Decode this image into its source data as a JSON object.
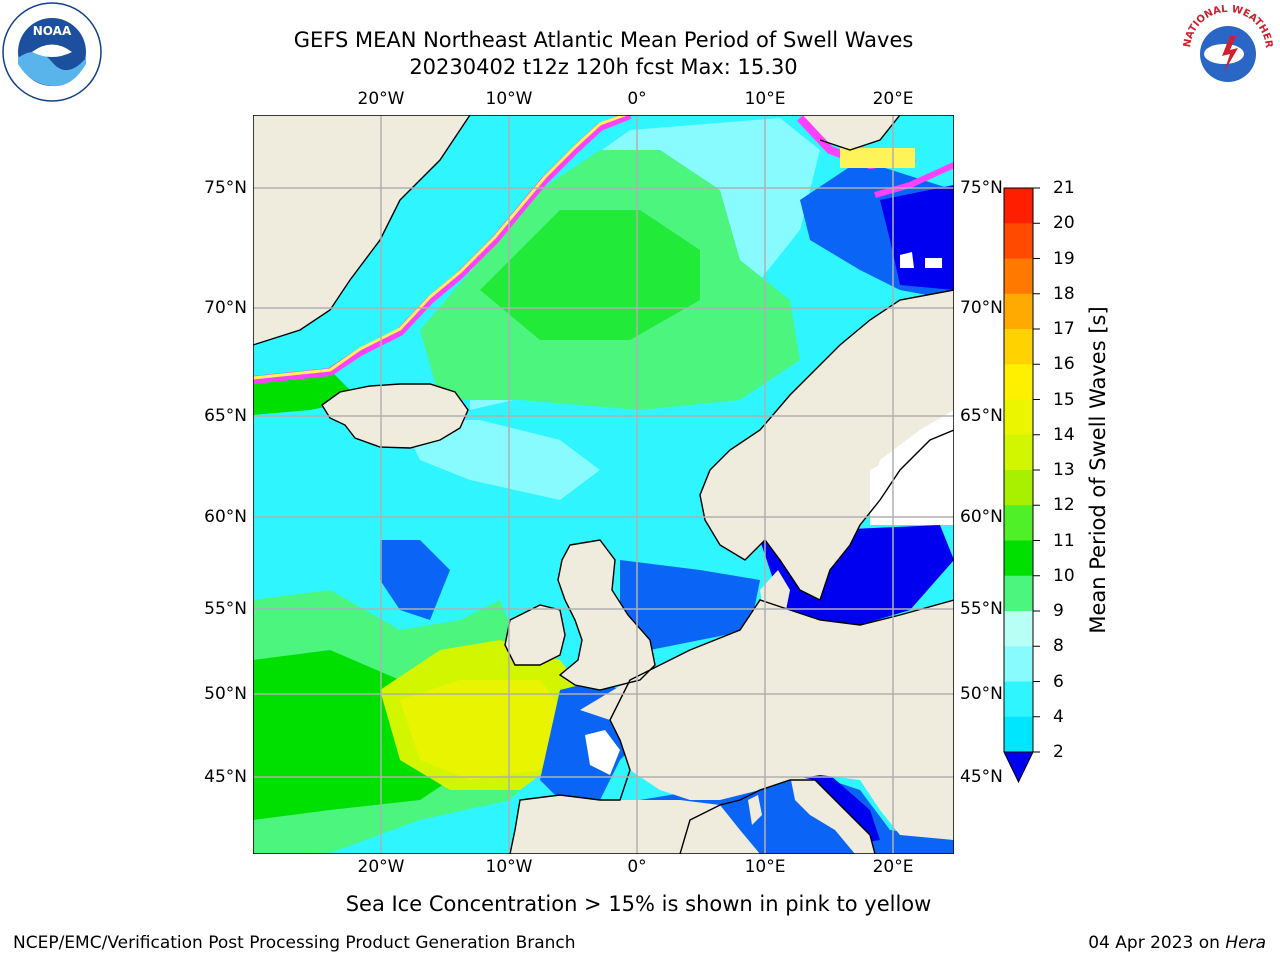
{
  "title": {
    "line1": "GEFS MEAN Northeast Atlantic Mean Period of Swell Waves",
    "line2": "20230402 t12z 120h fcst   Max: 15.30"
  },
  "lon_labels": [
    "20°W",
    "10°W",
    "0°",
    "10°E",
    "20°E"
  ],
  "lat_labels": [
    "75°N",
    "70°N",
    "65°N",
    "60°N",
    "55°N",
    "50°N",
    "45°N"
  ],
  "colorbar": {
    "label": "Mean Period of Swell Waves [s]",
    "ticks": [
      "2",
      "4",
      "6",
      "8",
      "9",
      "10",
      "11",
      "12",
      "13",
      "14",
      "15",
      "16",
      "17",
      "18",
      "19",
      "20",
      "21"
    ],
    "colors": [
      "#0a64f5",
      "#00e6ff",
      "#2ef5ff",
      "#87fbff",
      "#b8fff5",
      "#4cf57e",
      "#00e000",
      "#4ff027",
      "#a8f000",
      "#d2f500",
      "#ebf500",
      "#fff000",
      "#ffd200",
      "#ffaa00",
      "#ff7800",
      "#ff4a00",
      "#ff1e00"
    ]
  },
  "note": "Sea Ice Concentration > 15% is shown in pink to yellow",
  "credit": "NCEP/EMC/Verification Post Processing Product Generation Branch",
  "date": {
    "text": "04 Apr 2023 on",
    "host": "Hera"
  },
  "logos": {
    "left": "NOAA",
    "right": "NATIONAL WEATHER SERVICE"
  },
  "map_colors": {
    "land": "#efecdd",
    "ice_pink": "#ff40ff",
    "ice_yellow": "#fff35a",
    "grid": "#b0b0b0"
  }
}
